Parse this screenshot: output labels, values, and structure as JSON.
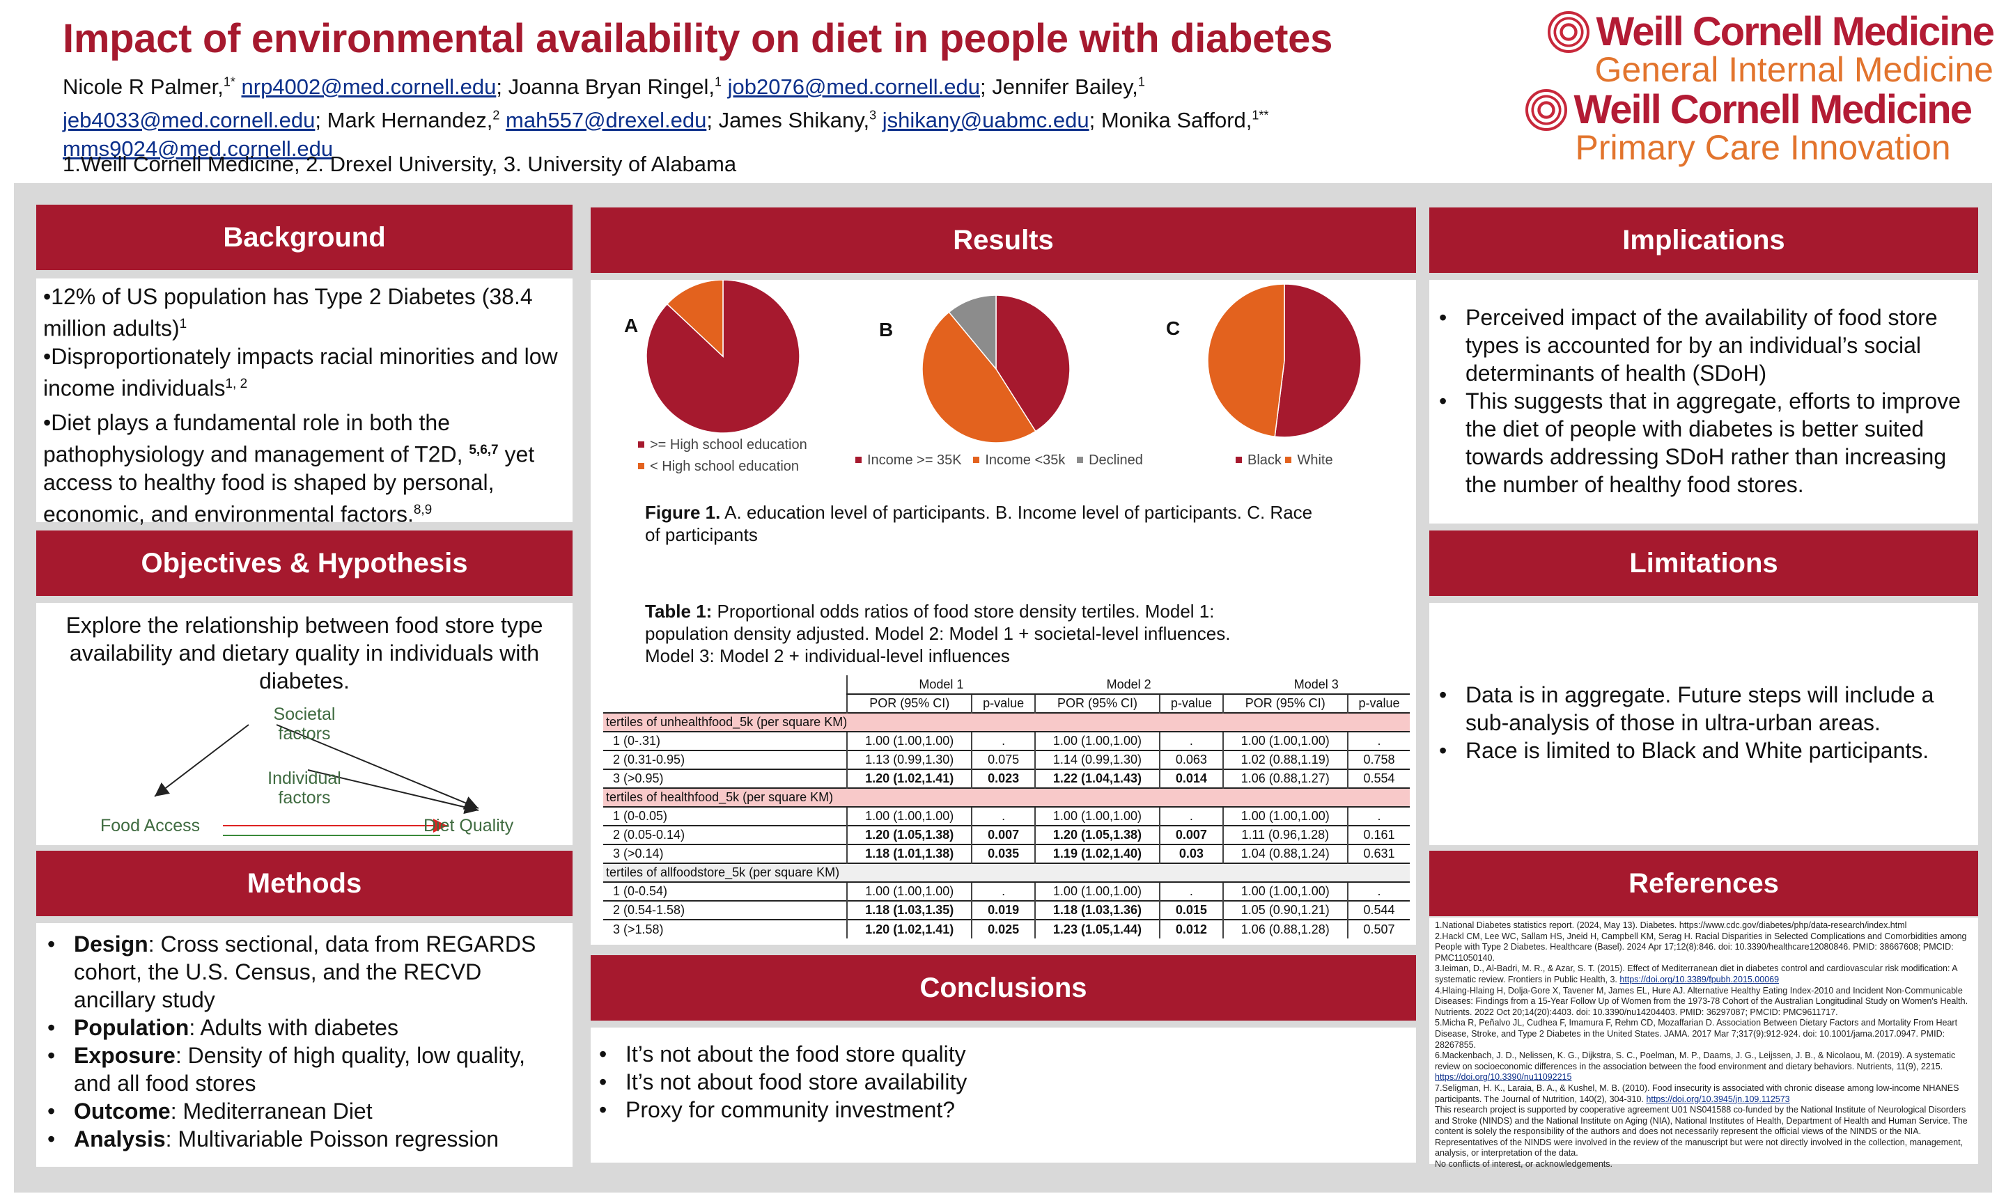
{
  "header": {
    "title": "Impact of environmental availability on diet in people with diabetes",
    "authors": [
      {
        "name": "Nicole R Palmer,",
        "sup": "1*",
        "email": "nrp4002@med.cornell.edu",
        "sep": ";"
      },
      {
        "name": "Joanna Bryan Ringel,",
        "sup": "1",
        "email": "job2076@med.cornell.edu",
        "sep": ";"
      },
      {
        "name": "Jennifer Bailey,",
        "sup": "1",
        "email": "jeb4033@med.cornell.edu",
        "sep": ";"
      },
      {
        "name": "Mark Hernandez,",
        "sup": "2",
        "email": "mah557@drexel.edu",
        "sep": ";"
      },
      {
        "name": "James Shikany,",
        "sup": "3",
        "email": "jshikany@uabmc.edu",
        "sep": ";"
      },
      {
        "name": "Monika Safford,",
        "sup": "1**",
        "email": "mms9024@med.cornell.edu",
        "sep": ""
      }
    ],
    "affiliations": "1.Weill Cornell Medicine, 2. Drexel University, 3. University of Alabama",
    "logos": [
      {
        "name": "Weill Cornell Medicine",
        "sub": "General Internal Medicine"
      },
      {
        "name": "Weill Cornell Medicine",
        "sub": "Primary Care Innovation"
      }
    ]
  },
  "background": {
    "heading": "Background",
    "p1": "•12% of US population has Type 2 Diabetes (38.4 million adults)",
    "p1_sup": "1",
    "p2": "•Disproportionately impacts racial minorities and low income individuals",
    "p2_sup": "1, 2",
    "p3": "•Diet plays a fundamental role in both the pathophysiology and management of T2D,",
    "p3_sup": "5,6,7",
    "p3b": "yet access to healthy food is shaped by personal, economic, and environmental factors.",
    "p3b_sup": "8,9"
  },
  "objectives": {
    "heading": "Objectives & Hypothesis",
    "text": "Explore the relationship between food store type availability and dietary quality in individuals with diabetes.",
    "diagram": {
      "societal_1": "Societal",
      "societal_2": "factors",
      "individual_1": "Individual",
      "individual_2": "factors",
      "food_access": "Food Access",
      "diet_quality": "Diet Quality"
    }
  },
  "methods": {
    "heading": "Methods",
    "items": [
      {
        "label": "Design",
        "text": ": Cross sectional, data from REGARDS cohort, the U.S. Census, and the RECVD ancillary study"
      },
      {
        "label": "Population",
        "text": ": Adults with diabetes"
      },
      {
        "label": "Exposure",
        "text": ": Density of high quality, low quality, and all food stores"
      },
      {
        "label": "Outcome",
        "text": ": Mediterranean Diet"
      },
      {
        "label": "Analysis",
        "text": ": Multivariable Poisson regression"
      }
    ]
  },
  "results": {
    "heading": "Results",
    "figure_caption_bold": "Figure 1.",
    "figure_caption": " A. education level of participants. B. Income level of participants. C. Race of participants",
    "table_caption_bold": "Table 1:",
    "table_caption": " Proportional odds ratios of food store density tertiles. Model 1: population density adjusted. Model 2: Model 1 + societal-level influences. Model 3: Model 2 + individual-level influences",
    "table": {
      "models": [
        "Model 1",
        "Model 2",
        "Model 3"
      ],
      "subheaders": [
        "POR (95% CI)",
        "p-value"
      ],
      "sections": [
        {
          "title": "tertiles of unhealthfood_5k  (per square KM)",
          "shade": "pink",
          "rows": [
            {
              "label": "1 (0-.31)",
              "m1": "1.00 (1.00,1.00)",
              "p1": ".",
              "m2": "1.00 (1.00,1.00)",
              "p2": ".",
              "m3": "1.00 (1.00,1.00)",
              "p3": ".",
              "b1": false,
              "b2": false
            },
            {
              "label": "2 (0.31-0.95)",
              "m1": "1.13 (0.99,1.30)",
              "p1": "0.075",
              "m2": "1.14 (0.99,1.30)",
              "p2": "0.063",
              "m3": "1.02 (0.88,1.19)",
              "p3": "0.758",
              "b1": false,
              "b2": false
            },
            {
              "label": "3 (>0.95)",
              "m1": "1.20 (1.02,1.41)",
              "p1": "0.023",
              "m2": "1.22 (1.04,1.43)",
              "p2": "0.014",
              "m3": "1.06 (0.88,1.27)",
              "p3": "0.554",
              "b1": true,
              "b2": true
            }
          ]
        },
        {
          "title": "tertiles of healthfood_5k (per square KM)",
          "shade": "pink",
          "rows": [
            {
              "label": "1 (0-0.05)",
              "m1": "1.00 (1.00,1.00)",
              "p1": ".",
              "m2": "1.00 (1.00,1.00)",
              "p2": ".",
              "m3": "1.00 (1.00,1.00)",
              "p3": ".",
              "b1": false,
              "b2": false
            },
            {
              "label": "2 (0.05-0.14)",
              "m1": "1.20 (1.05,1.38)",
              "p1": "0.007",
              "m2": "1.20 (1.05,1.38)",
              "p2": "0.007",
              "m3": "1.11 (0.96,1.28)",
              "p3": "0.161",
              "b1": true,
              "b2": true
            },
            {
              "label": "3 (>0.14)",
              "m1": "1.18 (1.01,1.38)",
              "p1": "0.035",
              "m2": "1.19 (1.02,1.40)",
              "p2": "0.03",
              "m3": "1.04 (0.88,1.24)",
              "p3": "0.631",
              "b1": true,
              "b2": true
            }
          ]
        },
        {
          "title": "tertiles of allfoodstore_5k (per square KM)",
          "shade": "gray",
          "rows": [
            {
              "label": "1 (0-0.54)",
              "m1": "1.00 (1.00,1.00)",
              "p1": ".",
              "m2": "1.00 (1.00,1.00)",
              "p2": ".",
              "m3": "1.00 (1.00,1.00)",
              "p3": ".",
              "b1": false,
              "b2": false
            },
            {
              "label": "2 (0.54-1.58)",
              "m1": "1.18 (1.03,1.35)",
              "p1": "0.019",
              "m2": "1.18 (1.03,1.36)",
              "p2": "0.015",
              "m3": "1.05 (0.90,1.21)",
              "p3": "0.544",
              "b1": true,
              "b2": true
            },
            {
              "label": "3 (>1.58)",
              "m1": "1.20 (1.02,1.41)",
              "p1": "0.025",
              "m2": "1.23 (1.05,1.44)",
              "p2": "0.012",
              "m3": "1.06 (0.88,1.28)",
              "p3": "0.507",
              "b1": true,
              "b2": true
            }
          ]
        }
      ]
    }
  },
  "chart_data": [
    {
      "type": "pie",
      "label": "A",
      "title": "",
      "categories": [
        ">= High school education",
        "< High school education"
      ],
      "values": [
        87,
        13
      ],
      "colors": [
        "#a6192e",
        "#e3621e"
      ]
    },
    {
      "type": "pie",
      "label": "B",
      "title": "",
      "categories": [
        "Income >= 35K",
        "Income <35k",
        "Declined"
      ],
      "values": [
        41,
        48,
        11
      ],
      "colors": [
        "#a6192e",
        "#e3621e",
        "#8c8c8c"
      ]
    },
    {
      "type": "pie",
      "label": "C",
      "title": "",
      "categories": [
        "Black",
        "White"
      ],
      "values": [
        52,
        48
      ],
      "colors": [
        "#a6192e",
        "#e3621e"
      ]
    }
  ],
  "conclusions": {
    "heading": "Conclusions",
    "items": [
      "It’s not about the food store quality",
      "It’s not about food store availability",
      "Proxy for community investment?"
    ]
  },
  "implications": {
    "heading": "Implications",
    "items": [
      "Perceived impact of the availability of food store types is accounted for by an individual’s social determinants of health (SDoH)",
      "This suggests that in aggregate, efforts to improve the diet of people with diabetes is better suited towards addressing SDoH rather than increasing the number of healthy food stores."
    ]
  },
  "limitations": {
    "heading": "Limitations",
    "items": [
      "Data is in aggregate. Future steps will include a sub-analysis of those in ultra-urban areas.",
      "Race is limited to Black and White participants."
    ]
  },
  "references": {
    "heading": "References",
    "items": [
      {
        "text": "1.National Diabetes statistics report. (2024, May 13). Diabetes. https://www.cdc.gov/diabetes/php/data-research/index.html",
        "link": ""
      },
      {
        "text": "2.Hackl CM, Lee WC, Sallam HS, Jneid H, Campbell KM, Serag H. Racial Disparities in Selected Complications and Comorbidities among People with Type 2 Diabetes. Healthcare (Basel). 2024 Apr 17;12(8):846. doi: 10.3390/healthcare12080846. PMID: 38667608; PMCID: PMC11050140.",
        "link": ""
      },
      {
        "text": "3.Ieiman, D., Al-Badri, M. R., & Azar, S. T. (2015). Effect of Mediterranean diet in diabetes control and cardiovascular risk modification: A systematic review. Frontiers in Public Health, 3.",
        "link": "https://doi.org/10.3389/fpubh.2015.00069"
      },
      {
        "text": "4.Hlaing-Hlaing H, Dolja-Gore X, Tavener M, James EL, Hure AJ. Alternative Healthy Eating Index-2010 and Incident Non-Communicable Diseases: Findings from a 15-Year Follow Up of Women from the 1973-78 Cohort of the Australian Longitudinal Study on Women's Health. Nutrients. 2022 Oct 20;14(20):4403. doi: 10.3390/nu14204403. PMID: 36297087; PMCID: PMC9611717.",
        "link": ""
      },
      {
        "text": "5.Micha R, Peñalvo JL, Cudhea F, Imamura F, Rehm CD, Mozaffarian D. Association Between Dietary Factors and Mortality From Heart Disease, Stroke, and Type 2 Diabetes in the United States. JAMA. 2017 Mar 7;317(9):912-924. doi: 10.1001/jama.2017.0947. PMID: 28267855.",
        "link": ""
      },
      {
        "text": "6.Mackenbach, J. D., Nelissen, K. G., Dijkstra, S. C., Poelman, M. P., Daams, J. G., Leijssen, J. B., & Nicolaou, M. (2019). A systematic review on socioeconomic differences in the association between the food environment and dietary behaviors. Nutrients, 11(9), 2215.",
        "link": "https://doi.org/10.3390/nu11092215"
      },
      {
        "text": "7.Seligman, H. K., Laraia, B. A., & Kushel, M. B. (2010). Food insecurity is associated with chronic disease among low-income NHANES participants. The Journal of Nutrition, 140(2), 304-310.",
        "link": "https://doi.org/10.3945/jn.109.112573"
      },
      {
        "text": "This research project is supported by cooperative agreement U01 NS041588 co-funded by the National Institute of Neurological Disorders and Stroke (NINDS) and the National Institute on Aging (NIA), National Institutes of Health, Department of Health and Human Service. The content is solely the responsibility of the authors and does not necessarily represent the official views of the NINDS or the NIA. Representatives of the NINDS were involved in the review of the manuscript but were not directly involved in the collection, management, analysis, or interpretation of the data.",
        "link": ""
      },
      {
        "text": "No conflicts of interest, or acknowledgements.",
        "link": ""
      }
    ]
  }
}
